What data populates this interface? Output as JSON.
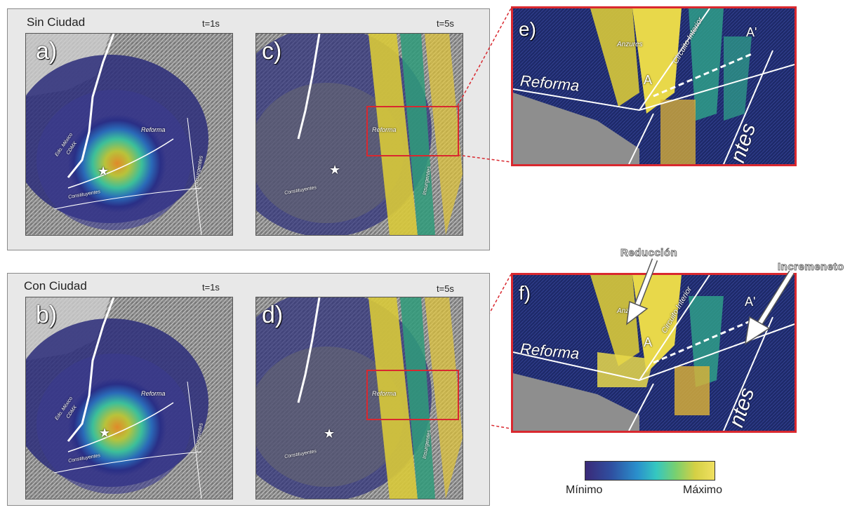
{
  "groups": {
    "top": {
      "title": "Sin Ciudad",
      "time_left": "t=1s",
      "time_right": "t=5s"
    },
    "bottom": {
      "title": "Con Ciudad",
      "time_left": "t=1s",
      "time_right": "t=5s"
    }
  },
  "panels": {
    "a": {
      "letter": "a)"
    },
    "b": {
      "letter": "b)"
    },
    "c": {
      "letter": "c)"
    },
    "d": {
      "letter": "d)"
    },
    "e": {
      "letter": "e)"
    },
    "f": {
      "letter": "f)"
    }
  },
  "streets": {
    "reforma": "Reforma",
    "insurgentes": "Insurgentes",
    "constituyentes": "Constituyentes",
    "edo_mexico": "Edo. México",
    "cdmx": "CDMX",
    "anzures": "Anzures",
    "circuito": "Circuito Interior",
    "ntes": "ntes",
    "a": "A",
    "a_prime": "A'"
  },
  "annotations": {
    "reduccion": "Reducción",
    "incremento": "Incremeneto"
  },
  "legend": {
    "min": "Mínimo",
    "max": "Máximo"
  },
  "colors": {
    "callout": "#d9282f",
    "group_bg": "#e8e8e8"
  }
}
